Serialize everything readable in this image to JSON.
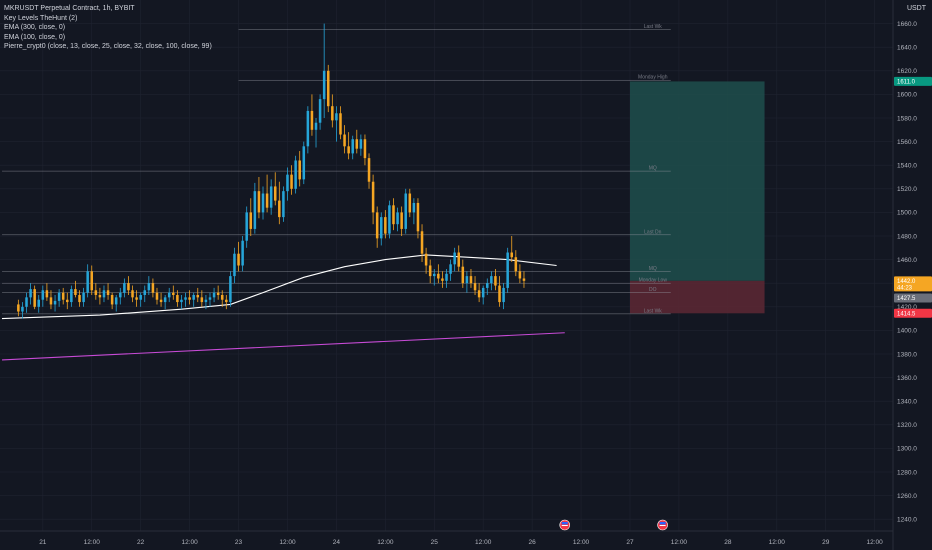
{
  "header": {
    "title": "MKRUSDT Perpetual Contract, 1h, BYBIT",
    "indicators": [
      "Key Levels TheHunt (2)",
      "EMA (300, close, 0)",
      "EMA (100, close, 0)",
      "Pierre_crypt0 (close, 13, close, 25, close, 32, close, 100, close, 99)"
    ],
    "currency": "USDT"
  },
  "colors": {
    "background": "#131722",
    "grid": "#1f2330",
    "up": "#26a5d8",
    "down": "#f5a623",
    "ema300": "#c74bd6",
    "ema100": "#ffffff",
    "target_zone": "#1f4f4c",
    "stop_zone": "#5a2733",
    "price_tag": "#f5a623",
    "target_tag": "#089981",
    "stop_tag": "#f23645",
    "avg_tag": "#6b6f7a"
  },
  "chart_data": {
    "type": "candlestick",
    "y_axis": {
      "min": 1230,
      "max": 1680,
      "ticks": [
        1660.0,
        1640.0,
        1620.0,
        1600.0,
        1580.0,
        1560.0,
        1540.0,
        1520.0,
        1500.0,
        1480.0,
        1460.0,
        1440.0,
        1420.0,
        1400.0,
        1380.0,
        1360.0,
        1340.0,
        1320.0,
        1300.0,
        1280.0,
        1260.0,
        1240.0
      ]
    },
    "x_axis": {
      "ticks": [
        {
          "label": "21",
          "t": 6
        },
        {
          "label": "12:00",
          "t": 18
        },
        {
          "label": "22",
          "t": 30
        },
        {
          "label": "12:00",
          "t": 42
        },
        {
          "label": "23",
          "t": 54
        },
        {
          "label": "12:00",
          "t": 66
        },
        {
          "label": "24",
          "t": 78
        },
        {
          "label": "12:00",
          "t": 90
        },
        {
          "label": "25",
          "t": 102
        },
        {
          "label": "12:00",
          "t": 114
        },
        {
          "label": "26",
          "t": 126
        },
        {
          "label": "12:00",
          "t": 138
        },
        {
          "label": "27",
          "t": 150
        },
        {
          "label": "12:00",
          "t": 162
        },
        {
          "label": "28",
          "t": 174
        },
        {
          "label": "12:00",
          "t": 186
        },
        {
          "label": "29",
          "t": 198
        },
        {
          "label": "12:00",
          "t": 210
        }
      ],
      "t_range": [
        -4.5,
        214.5
      ]
    },
    "key_levels": [
      {
        "label": "Last Wk",
        "value": 1655,
        "start": 54,
        "end": 160
      },
      {
        "label": "Monday High",
        "value": 1612,
        "start": 54,
        "end": 160
      },
      {
        "label": "MQ",
        "value": 1535,
        "start": -4,
        "end": 160
      },
      {
        "label": "Last Dn",
        "value": 1481,
        "start": -4,
        "end": 160
      },
      {
        "label": "MQ",
        "value": 1450,
        "start": -4,
        "end": 160
      },
      {
        "label": "Monday Low",
        "value": 1440,
        "start": -4,
        "end": 160
      },
      {
        "label": "DO",
        "value": 1432,
        "start": -4,
        "end": 160
      },
      {
        "label": "Last Wk",
        "value": 1414,
        "start": -4,
        "end": 160
      }
    ],
    "position": {
      "entry": 1442.0,
      "target": 1611.0,
      "stop": 1414.5,
      "start": 150,
      "end": 183
    },
    "price_tags": [
      {
        "label": "1611.0",
        "value": 1611.0,
        "role": "target"
      },
      {
        "label": "1442.0",
        "value": 1442.0,
        "role": "price",
        "sub": "44:23"
      },
      {
        "label": "1427.5",
        "value": 1427.5,
        "role": "avg"
      },
      {
        "label": "1414.5",
        "value": 1414.5,
        "role": "stop"
      }
    ],
    "events": [
      {
        "t": 134,
        "icon": "us-flag-event-icon"
      },
      {
        "t": 158,
        "icon": "us-flag-event-icon"
      }
    ],
    "ema300": {
      "start_t": -4,
      "start": 1375,
      "end_t": 134,
      "end": 1398
    },
    "ema100": [
      [
        -4,
        1410
      ],
      [
        20,
        1413
      ],
      [
        40,
        1418
      ],
      [
        52,
        1422
      ],
      [
        60,
        1432
      ],
      [
        70,
        1445
      ],
      [
        80,
        1454
      ],
      [
        90,
        1460
      ],
      [
        100,
        1464
      ],
      [
        110,
        1462
      ],
      [
        120,
        1460
      ],
      [
        132,
        1455
      ]
    ],
    "candles": [
      [
        1422,
        1426,
        1412,
        1416
      ],
      [
        1416,
        1424,
        1410,
        1420
      ],
      [
        1420,
        1432,
        1415,
        1428
      ],
      [
        1428,
        1440,
        1422,
        1435
      ],
      [
        1435,
        1438,
        1418,
        1420
      ],
      [
        1420,
        1430,
        1415,
        1426
      ],
      [
        1426,
        1438,
        1420,
        1434
      ],
      [
        1434,
        1440,
        1425,
        1428
      ],
      [
        1428,
        1434,
        1418,
        1422
      ],
      [
        1422,
        1430,
        1416,
        1425
      ],
      [
        1425,
        1435,
        1420,
        1432
      ],
      [
        1432,
        1436,
        1422,
        1426
      ],
      [
        1426,
        1432,
        1418,
        1424
      ],
      [
        1424,
        1438,
        1420,
        1435
      ],
      [
        1435,
        1442,
        1428,
        1430
      ],
      [
        1430,
        1434,
        1420,
        1424
      ],
      [
        1424,
        1436,
        1420,
        1432
      ],
      [
        1432,
        1456,
        1428,
        1450
      ],
      [
        1450,
        1455,
        1430,
        1434
      ],
      [
        1434,
        1440,
        1426,
        1430
      ],
      [
        1430,
        1436,
        1422,
        1428
      ],
      [
        1428,
        1438,
        1424,
        1434
      ],
      [
        1434,
        1440,
        1426,
        1430
      ],
      [
        1430,
        1432,
        1418,
        1422
      ],
      [
        1422,
        1430,
        1416,
        1428
      ],
      [
        1428,
        1436,
        1422,
        1432
      ],
      [
        1432,
        1444,
        1428,
        1440
      ],
      [
        1440,
        1446,
        1430,
        1434
      ],
      [
        1434,
        1438,
        1424,
        1428
      ],
      [
        1428,
        1434,
        1420,
        1426
      ],
      [
        1426,
        1432,
        1420,
        1430
      ],
      [
        1430,
        1438,
        1424,
        1434
      ],
      [
        1434,
        1446,
        1430,
        1440
      ],
      [
        1440,
        1444,
        1428,
        1432
      ],
      [
        1432,
        1436,
        1422,
        1426
      ],
      [
        1426,
        1432,
        1420,
        1424
      ],
      [
        1424,
        1430,
        1418,
        1428
      ],
      [
        1428,
        1436,
        1424,
        1432
      ],
      [
        1432,
        1438,
        1426,
        1430
      ],
      [
        1430,
        1434,
        1420,
        1424
      ],
      [
        1424,
        1430,
        1418,
        1426
      ],
      [
        1426,
        1432,
        1420,
        1428
      ],
      [
        1428,
        1434,
        1422,
        1426
      ],
      [
        1426,
        1432,
        1420,
        1430
      ],
      [
        1430,
        1436,
        1424,
        1428
      ],
      [
        1428,
        1434,
        1420,
        1424
      ],
      [
        1424,
        1430,
        1418,
        1426
      ],
      [
        1426,
        1432,
        1420,
        1428
      ],
      [
        1428,
        1436,
        1424,
        1432
      ],
      [
        1432,
        1438,
        1426,
        1430
      ],
      [
        1430,
        1434,
        1420,
        1426
      ],
      [
        1426,
        1430,
        1418,
        1424
      ],
      [
        1424,
        1450,
        1420,
        1446
      ],
      [
        1446,
        1470,
        1440,
        1465
      ],
      [
        1465,
        1475,
        1450,
        1455
      ],
      [
        1455,
        1480,
        1450,
        1476
      ],
      [
        1476,
        1505,
        1470,
        1500
      ],
      [
        1500,
        1512,
        1480,
        1486
      ],
      [
        1486,
        1525,
        1482,
        1518
      ],
      [
        1518,
        1530,
        1495,
        1500
      ],
      [
        1500,
        1522,
        1494,
        1516
      ],
      [
        1516,
        1532,
        1500,
        1504
      ],
      [
        1504,
        1528,
        1498,
        1522
      ],
      [
        1522,
        1534,
        1506,
        1510
      ],
      [
        1510,
        1526,
        1490,
        1496
      ],
      [
        1496,
        1522,
        1492,
        1518
      ],
      [
        1518,
        1538,
        1510,
        1532
      ],
      [
        1532,
        1540,
        1515,
        1520
      ],
      [
        1520,
        1548,
        1516,
        1544
      ],
      [
        1544,
        1552,
        1522,
        1528
      ],
      [
        1528,
        1560,
        1524,
        1556
      ],
      [
        1556,
        1590,
        1550,
        1586
      ],
      [
        1586,
        1600,
        1565,
        1570
      ],
      [
        1570,
        1580,
        1555,
        1576
      ],
      [
        1576,
        1600,
        1570,
        1596
      ],
      [
        1596,
        1660,
        1580,
        1620
      ],
      [
        1620,
        1625,
        1585,
        1590
      ],
      [
        1590,
        1600,
        1572,
        1578
      ],
      [
        1578,
        1590,
        1560,
        1584
      ],
      [
        1584,
        1590,
        1562,
        1566
      ],
      [
        1566,
        1574,
        1550,
        1556
      ],
      [
        1556,
        1568,
        1545,
        1550
      ],
      [
        1550,
        1565,
        1545,
        1562
      ],
      [
        1562,
        1570,
        1550,
        1554
      ],
      [
        1554,
        1566,
        1548,
        1562
      ],
      [
        1562,
        1566,
        1540,
        1546
      ],
      [
        1546,
        1550,
        1520,
        1526
      ],
      [
        1526,
        1532,
        1490,
        1500
      ],
      [
        1500,
        1505,
        1470,
        1478
      ],
      [
        1478,
        1500,
        1472,
        1496
      ],
      [
        1496,
        1502,
        1478,
        1482
      ],
      [
        1482,
        1510,
        1478,
        1506
      ],
      [
        1506,
        1512,
        1485,
        1490
      ],
      [
        1490,
        1504,
        1484,
        1500
      ],
      [
        1500,
        1505,
        1480,
        1486
      ],
      [
        1486,
        1520,
        1482,
        1516
      ],
      [
        1516,
        1520,
        1496,
        1500
      ],
      [
        1500,
        1512,
        1490,
        1508
      ],
      [
        1508,
        1512,
        1478,
        1484
      ],
      [
        1484,
        1490,
        1458,
        1465
      ],
      [
        1465,
        1470,
        1448,
        1455
      ],
      [
        1455,
        1460,
        1440,
        1446
      ],
      [
        1446,
        1452,
        1438,
        1448
      ],
      [
        1448,
        1456,
        1440,
        1444
      ],
      [
        1444,
        1450,
        1436,
        1442
      ],
      [
        1442,
        1452,
        1436,
        1448
      ],
      [
        1448,
        1460,
        1442,
        1456
      ],
      [
        1456,
        1470,
        1450,
        1466
      ],
      [
        1466,
        1472,
        1450,
        1454
      ],
      [
        1454,
        1460,
        1436,
        1440
      ],
      [
        1440,
        1450,
        1432,
        1446
      ],
      [
        1446,
        1452,
        1436,
        1440
      ],
      [
        1440,
        1446,
        1430,
        1434
      ],
      [
        1434,
        1440,
        1424,
        1428
      ],
      [
        1428,
        1438,
        1422,
        1436
      ],
      [
        1436,
        1444,
        1430,
        1440
      ],
      [
        1440,
        1450,
        1434,
        1446
      ],
      [
        1446,
        1452,
        1434,
        1438
      ],
      [
        1438,
        1446,
        1420,
        1424
      ],
      [
        1424,
        1440,
        1418,
        1436
      ],
      [
        1436,
        1470,
        1432,
        1466
      ],
      [
        1466,
        1480,
        1458,
        1462
      ],
      [
        1462,
        1468,
        1446,
        1450
      ],
      [
        1450,
        1456,
        1440,
        1444
      ],
      [
        1444,
        1450,
        1436,
        1442
      ]
    ]
  }
}
